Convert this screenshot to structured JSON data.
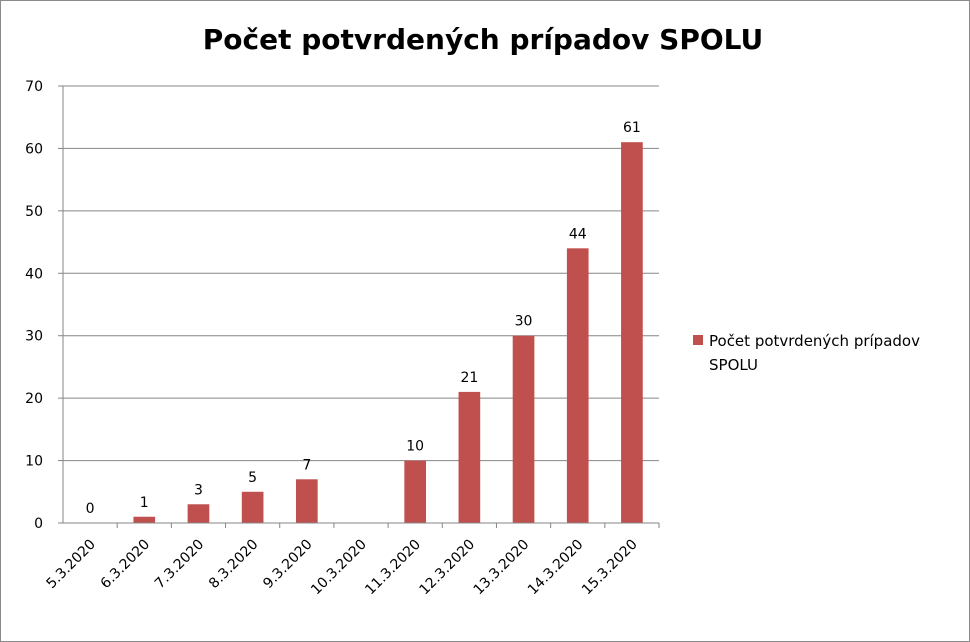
{
  "chart_data": {
    "type": "bar",
    "title": "Počet potvrdených prípadov SPOLU",
    "xlabel": "",
    "ylabel": "",
    "categories": [
      "5.3.2020",
      "6.3.2020",
      "7.3.2020",
      "8.3.2020",
      "9.3.2020",
      "10.3.2020",
      "11.3.2020",
      "12.3.2020",
      "13.3.2020",
      "14.3.2020",
      "15.3.2020"
    ],
    "series": [
      {
        "name": "Počet potvrdených prípadov SPOLU",
        "values": [
          0,
          1,
          3,
          5,
          7,
          null,
          10,
          21,
          30,
          44,
          61
        ],
        "data_labels": [
          "0",
          "1",
          "3",
          "5",
          "7",
          "",
          "10",
          "21",
          "30",
          "44",
          "61"
        ],
        "color": "#c0504d"
      }
    ],
    "ylim": [
      0,
      70
    ],
    "yticks": [
      "0",
      "10",
      "20",
      "30",
      "40",
      "50",
      "60",
      "70"
    ],
    "grid": true,
    "legend_position": "right",
    "legend": {
      "lines": [
        "Počet potvrdených prípadov",
        "SPOLU"
      ]
    }
  }
}
